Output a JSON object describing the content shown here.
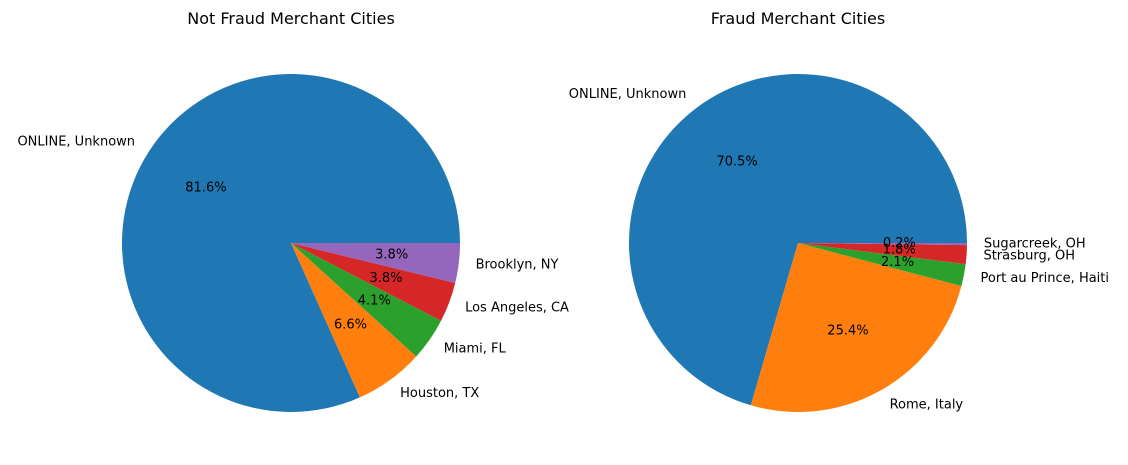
{
  "chart_data": [
    {
      "type": "pie",
      "title": "Not Fraud Merchant Cities",
      "labels": [
        "ONLINE, Unknown",
        "Houston, TX",
        "Miami, FL",
        "Los Angeles, CA",
        "Brooklyn, NY"
      ],
      "values": [
        81.6,
        6.6,
        4.1,
        3.8,
        3.8
      ],
      "percent_labels": [
        "81.6%",
        "6.6%",
        "4.1%",
        "3.8%",
        "3.8%"
      ],
      "colors": [
        "#1f77b4",
        "#ff7f0e",
        "#2ca02c",
        "#d62728",
        "#9467bd"
      ],
      "start_angle": 0,
      "direction": "counterclockwise"
    },
    {
      "type": "pie",
      "title": "Fraud Merchant Cities",
      "labels": [
        "ONLINE, Unknown",
        "Rome, Italy",
        "Port au Prince, Haiti",
        "Strasburg, OH",
        "Sugarcreek, OH"
      ],
      "values": [
        70.5,
        25.4,
        2.1,
        1.8,
        0.2
      ],
      "percent_labels": [
        "70.5%",
        "25.4%",
        "2.1%",
        "1.8%",
        "0.2%"
      ],
      "colors": [
        "#1f77b4",
        "#ff7f0e",
        "#2ca02c",
        "#d62728",
        "#9467bd"
      ],
      "start_angle": 0,
      "direction": "counterclockwise"
    }
  ]
}
